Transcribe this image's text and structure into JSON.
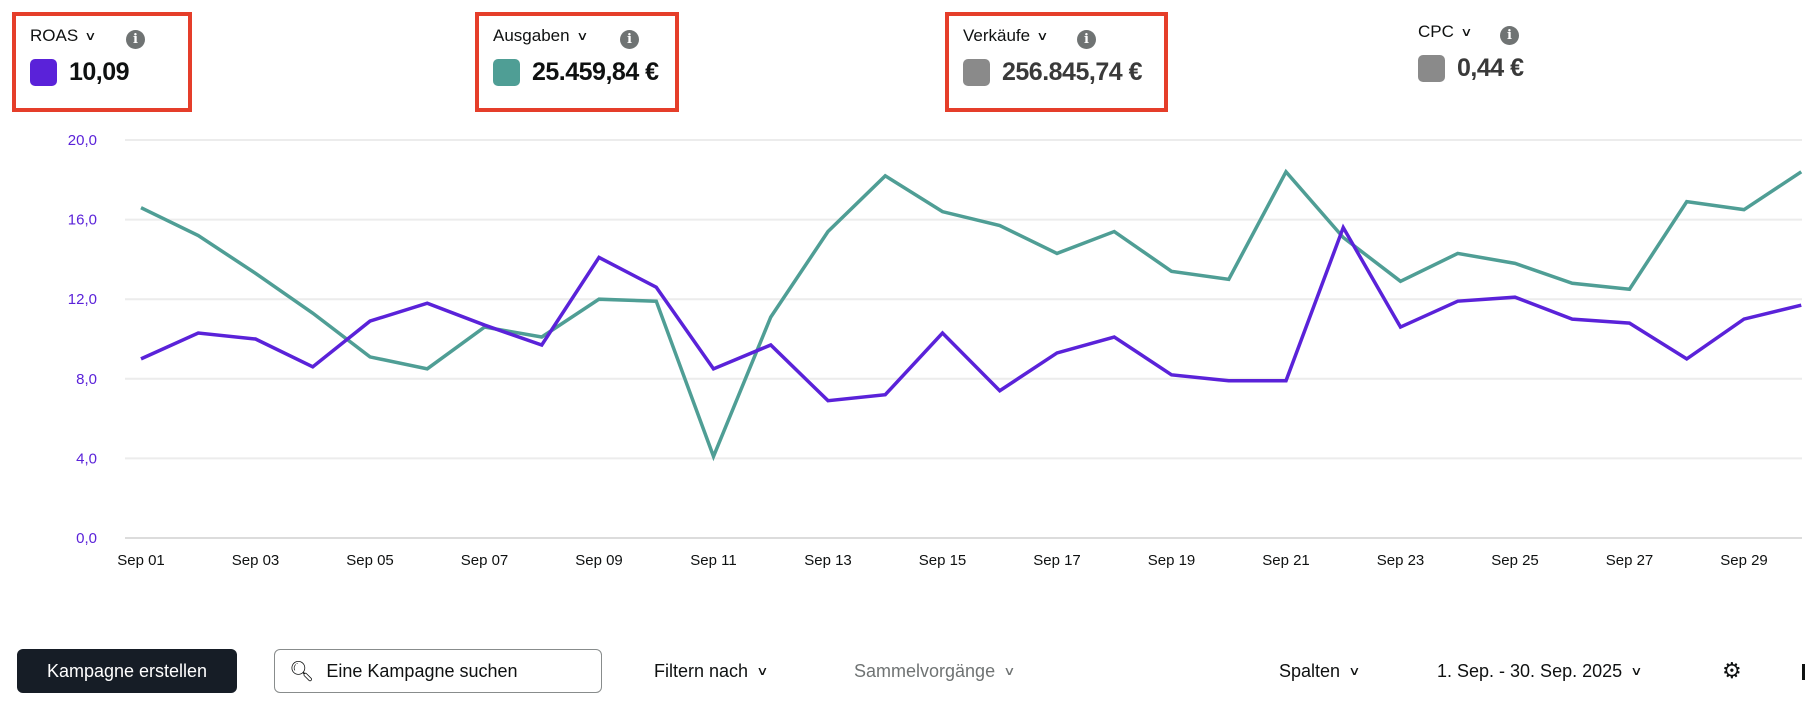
{
  "metrics": [
    {
      "label": "ROAS",
      "value": "10,09",
      "color": "#5a22d9",
      "highlighted": true
    },
    {
      "label": "Ausgaben",
      "value": "25.459,84 €",
      "color": "#4f9e95",
      "highlighted": true
    },
    {
      "label": "Verkäufe",
      "value": "256.845,74 €",
      "color": "#8a8a8a",
      "highlighted": true
    },
    {
      "label": "CPC",
      "value": "0,44 €",
      "color": "#8a8a8a",
      "highlighted": false
    }
  ],
  "icons": {
    "dropdown": "chevron-down-icon",
    "info": "info-icon",
    "search": "search-icon",
    "settings": "gear-icon"
  },
  "chart_data": {
    "type": "line",
    "x": [
      "Sep 01",
      "Sep 02",
      "Sep 03",
      "Sep 04",
      "Sep 05",
      "Sep 06",
      "Sep 07",
      "Sep 08",
      "Sep 09",
      "Sep 10",
      "Sep 11",
      "Sep 12",
      "Sep 13",
      "Sep 14",
      "Sep 15",
      "Sep 16",
      "Sep 17",
      "Sep 18",
      "Sep 19",
      "Sep 20",
      "Sep 21",
      "Sep 22",
      "Sep 23",
      "Sep 24",
      "Sep 25",
      "Sep 26",
      "Sep 27",
      "Sep 28",
      "Sep 29",
      "Sep 30"
    ],
    "x_tick_labels": [
      "Sep 01",
      "Sep 03",
      "Sep 05",
      "Sep 07",
      "Sep 09",
      "Sep 11",
      "Sep 13",
      "Sep 15",
      "Sep 17",
      "Sep 19",
      "Sep 21",
      "Sep 23",
      "Sep 25",
      "Sep 27",
      "Sep 29"
    ],
    "y_tick_labels": [
      "0,0",
      "4,0",
      "8,0",
      "12,0",
      "16,0",
      "20,0"
    ],
    "ylim": [
      0,
      20
    ],
    "grid": true,
    "axis_color": "#5a22d9",
    "series": [
      {
        "color": "#5a22d9",
        "values": [
          9.0,
          10.3,
          10.0,
          8.6,
          10.9,
          11.8,
          10.7,
          9.7,
          14.1,
          12.6,
          8.5,
          9.7,
          6.9,
          7.2,
          10.3,
          7.4,
          9.3,
          10.1,
          8.2,
          7.9,
          7.9,
          15.6,
          10.6,
          11.9,
          12.1,
          11.0,
          10.8,
          9.0,
          11.0,
          11.7
        ]
      },
      {
        "color": "#4f9e95",
        "values": [
          16.6,
          15.2,
          13.3,
          11.3,
          9.1,
          8.5,
          10.6,
          10.1,
          12.0,
          11.9,
          4.1,
          11.1,
          15.4,
          18.2,
          16.4,
          15.7,
          14.3,
          15.4,
          13.4,
          13.0,
          18.4,
          15.1,
          12.9,
          14.3,
          13.8,
          12.8,
          12.5,
          16.9,
          16.5,
          18.4
        ]
      }
    ]
  },
  "toolbar": {
    "create_label": "Kampagne erstellen",
    "search_placeholder": "Eine Kampagne suchen",
    "filter_label": "Filtern nach",
    "bulk_label": "Sammelvorgänge",
    "columns_label": "Spalten",
    "date_range": "1. Sep. - 30. Sep. 2025"
  }
}
